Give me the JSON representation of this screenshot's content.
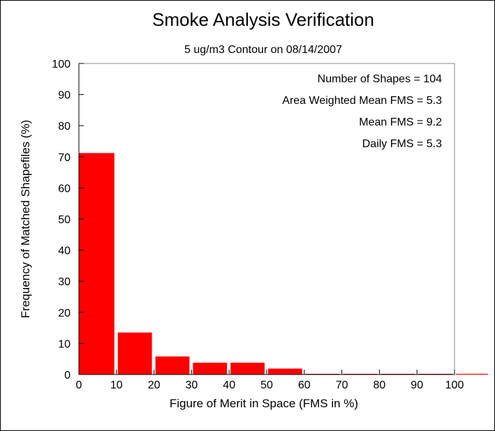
{
  "chart_data": {
    "type": "bar",
    "title": "Smoke Analysis Verification",
    "subtitle": "5 ug/m3 Contour on 08/14/2007",
    "xlabel": "Figure of Merit in Space (FMS in %)",
    "ylabel": "Frequency of Matched Shapefiles (%)",
    "xlim": [
      0,
      100
    ],
    "ylim": [
      0,
      100
    ],
    "xticks": [
      "0",
      "10",
      "20",
      "30",
      "40",
      "50",
      "60",
      "70",
      "80",
      "90",
      "100"
    ],
    "yticks": [
      "0",
      "10",
      "20",
      "30",
      "40",
      "50",
      "60",
      "70",
      "80",
      "90",
      "100"
    ],
    "bin_width": 10,
    "bins": [
      {
        "start": 0,
        "end": 10,
        "value": 71.2
      },
      {
        "start": 10,
        "end": 20,
        "value": 13.5
      },
      {
        "start": 20,
        "end": 30,
        "value": 5.8
      },
      {
        "start": 30,
        "end": 40,
        "value": 3.8
      },
      {
        "start": 40,
        "end": 50,
        "value": 3.8
      },
      {
        "start": 50,
        "end": 60,
        "value": 1.9
      },
      {
        "start": 60,
        "end": 70,
        "value": 0
      },
      {
        "start": 70,
        "end": 80,
        "value": 0
      },
      {
        "start": 80,
        "end": 90,
        "value": 0
      },
      {
        "start": 90,
        "end": 100,
        "value": 0
      },
      {
        "start": 100,
        "end": 110,
        "value": 0
      }
    ],
    "bar_color": "#ff0000",
    "grid": false,
    "annotations": [
      "Number of Shapes = 104",
      "Area Weighted Mean FMS = 5.3",
      "Mean FMS = 9.2",
      "Daily FMS = 5.3"
    ]
  }
}
